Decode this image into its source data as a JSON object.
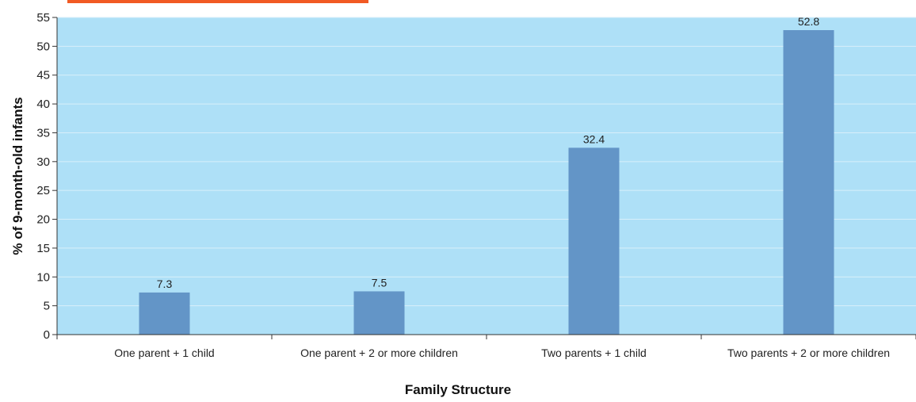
{
  "chart_data": {
    "type": "bar",
    "title": "",
    "xlabel": "Family Structure",
    "ylabel": "% of 9-month-old infants",
    "categories": [
      "One parent + 1 child",
      "One parent + 2 or more children",
      "Two parents + 1 child",
      "Two parents + 2 or more children"
    ],
    "values": [
      7.3,
      7.5,
      32.4,
      52.8
    ],
    "data_labels": [
      "7.3",
      "7.5",
      "32.4",
      "52.8"
    ],
    "ylim": [
      0,
      55
    ],
    "yticks": [
      0,
      5,
      10,
      15,
      20,
      25,
      30,
      35,
      40,
      45,
      50,
      55
    ],
    "grid": true,
    "legend": "none",
    "colors": {
      "plot_background": "#aee0f7",
      "bar": "#6395c7",
      "gridline": "#d8effa",
      "axis": "#333333",
      "top_accent": "#f15a24"
    }
  }
}
